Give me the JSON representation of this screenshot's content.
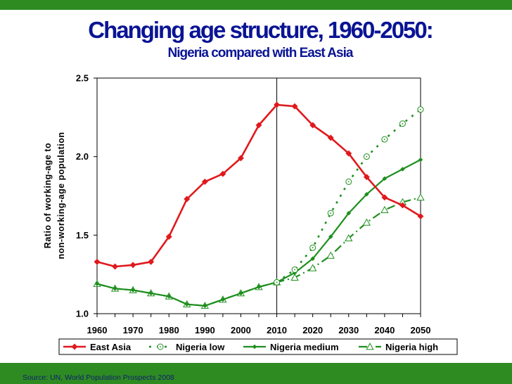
{
  "header": {
    "title": "Changing age structure, 1960-2050:",
    "subtitle": "Nigeria compared with East Asia"
  },
  "footer": {
    "source": "Source: UN, World Population Prospects 2008"
  },
  "colors": {
    "bar_green": "#2e8b22",
    "title_blue": "#0a1494",
    "east_asia": "#e0191c",
    "nigeria": "#1f8f1f"
  },
  "chart_data": {
    "type": "line",
    "title": "Changing age structure, 1960-2050: Nigeria compared with East Asia",
    "xlabel": "",
    "ylabel": [
      "Ratio of working-age to",
      "non-working-age population"
    ],
    "x": [
      1960,
      1965,
      1970,
      1975,
      1980,
      1985,
      1990,
      1995,
      2000,
      2005,
      2010,
      2015,
      2020,
      2025,
      2030,
      2035,
      2040,
      2045,
      2050
    ],
    "x_tick_labels": [
      "1960",
      "1970",
      "1980",
      "1990",
      "2000",
      "2010",
      "2020",
      "2030",
      "2040",
      "2050"
    ],
    "x_tick_values": [
      1960,
      1970,
      1980,
      1990,
      2000,
      2010,
      2020,
      2030,
      2040,
      2050
    ],
    "y_tick_labels": [
      "1.0",
      "1.5",
      "2.0",
      "2.5"
    ],
    "y_tick_values": [
      1.0,
      1.5,
      2.0,
      2.5
    ],
    "xlim": [
      1960,
      2050
    ],
    "ylim": [
      1.0,
      2.5
    ],
    "reference_line_x": 2010,
    "legend_position": "bottom",
    "series": [
      {
        "name": "East Asia",
        "style": "solid-diamond",
        "x": [
          1960,
          1965,
          1970,
          1975,
          1980,
          1985,
          1990,
          1995,
          2000,
          2005,
          2010,
          2015,
          2020,
          2025,
          2030,
          2035,
          2040,
          2045,
          2050
        ],
        "values": [
          1.33,
          1.3,
          1.31,
          1.33,
          1.49,
          1.73,
          1.84,
          1.89,
          1.99,
          2.2,
          2.33,
          2.32,
          2.2,
          2.12,
          2.02,
          1.87,
          1.74,
          1.69,
          1.62
        ]
      },
      {
        "name": "Nigeria low",
        "style": "dotted-circle",
        "x": [
          2010,
          2015,
          2020,
          2025,
          2030,
          2035,
          2040,
          2045,
          2050
        ],
        "values": [
          1.2,
          1.28,
          1.42,
          1.64,
          1.84,
          2.0,
          2.11,
          2.21,
          2.3
        ]
      },
      {
        "name": "Nigeria medium",
        "style": "solid-small-diamond",
        "x": [
          1960,
          1965,
          1970,
          1975,
          1980,
          1985,
          1990,
          1995,
          2000,
          2005,
          2010,
          2015,
          2020,
          2025,
          2030,
          2035,
          2040,
          2045,
          2050
        ],
        "values": [
          1.19,
          1.16,
          1.15,
          1.13,
          1.11,
          1.06,
          1.05,
          1.09,
          1.13,
          1.17,
          1.2,
          1.26,
          1.35,
          1.49,
          1.64,
          1.76,
          1.86,
          1.92,
          1.98
        ]
      },
      {
        "name": "Nigeria high",
        "style": "dashdot-triangle",
        "x": [
          1960,
          1965,
          1970,
          1975,
          1980,
          1985,
          1990,
          1995,
          2000,
          2005,
          2010,
          2015,
          2020,
          2025,
          2030,
          2035,
          2040,
          2045,
          2050
        ],
        "values": [
          1.19,
          1.16,
          1.15,
          1.13,
          1.11,
          1.06,
          1.05,
          1.09,
          1.13,
          1.17,
          1.2,
          1.23,
          1.29,
          1.37,
          1.48,
          1.58,
          1.66,
          1.71,
          1.74
        ]
      }
    ]
  }
}
